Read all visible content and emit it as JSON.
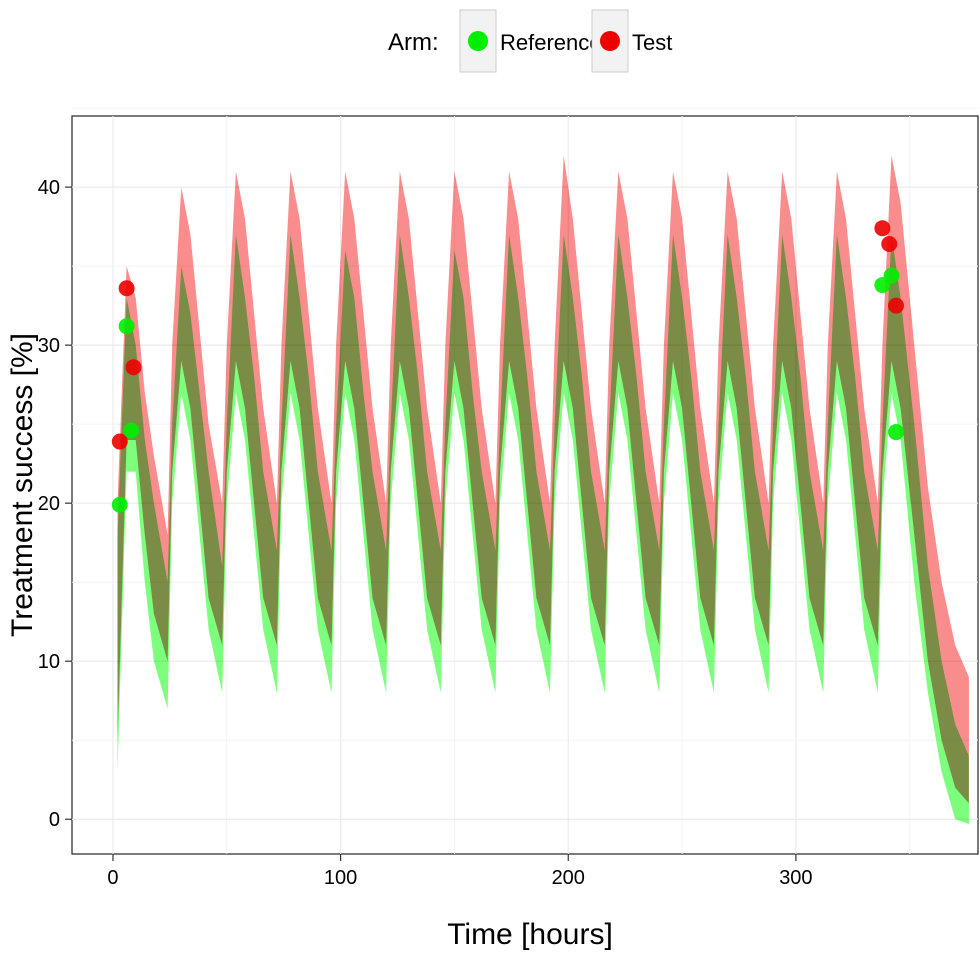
{
  "chart_data": {
    "type": "area",
    "xlabel": "Time [hours]",
    "ylabel": "Treatment success [%]",
    "xlim": [
      -18,
      380
    ],
    "ylim": [
      -2.2,
      44.5
    ],
    "x_ticks": [
      0,
      100,
      200,
      300
    ],
    "y_ticks": [
      0,
      10,
      20,
      30,
      40
    ],
    "grid": true,
    "legend": {
      "title": "Arm:",
      "position": "top",
      "entries": [
        {
          "label": "Reference",
          "color": "#00ee00"
        },
        {
          "label": "Test",
          "color": "#ee0000"
        }
      ]
    },
    "band_description": "90% prediction interval ribbons, dosing every 24 h",
    "series": [
      {
        "name": "Reference",
        "color": "#00ee00",
        "band_color": "#66ff66",
        "dose_interval_h": 24,
        "band_x": [
          2,
          6,
          10,
          14,
          18,
          24,
          26,
          30,
          34,
          38,
          42,
          48,
          50,
          54,
          58,
          62,
          66,
          72,
          74,
          78,
          82,
          86,
          90,
          96,
          98,
          102,
          106,
          110,
          114,
          120,
          122,
          126,
          130,
          134,
          138,
          144,
          146,
          150,
          154,
          158,
          162,
          168,
          170,
          174,
          178,
          182,
          186,
          192,
          194,
          198,
          202,
          206,
          210,
          216,
          218,
          222,
          226,
          230,
          234,
          240,
          242,
          246,
          250,
          254,
          258,
          264,
          266,
          270,
          274,
          278,
          282,
          288,
          290,
          294,
          298,
          302,
          306,
          312,
          314,
          318,
          322,
          326,
          330,
          336,
          338,
          342,
          346,
          352,
          358,
          364,
          370,
          376
        ],
        "band_upper": [
          18,
          33,
          30,
          24,
          20,
          15,
          25,
          35,
          32,
          27,
          22,
          16,
          25,
          37,
          33,
          28,
          22,
          17,
          25,
          37,
          33,
          28,
          22,
          17,
          25,
          36,
          33,
          27,
          22,
          17,
          25,
          37,
          33,
          28,
          22,
          17,
          25,
          36,
          33,
          27,
          22,
          17,
          25,
          37,
          33,
          28,
          22,
          17,
          25,
          37,
          33,
          28,
          22,
          17,
          25,
          37,
          33,
          28,
          22,
          17,
          25,
          37,
          33,
          28,
          22,
          17,
          25,
          37,
          33,
          28,
          22,
          17,
          25,
          37,
          33,
          28,
          22,
          17,
          25,
          37,
          33,
          28,
          22,
          17,
          25,
          37,
          33,
          25,
          16,
          10,
          6,
          4
        ],
        "band_lower": [
          3,
          22,
          22,
          15,
          10,
          7,
          20,
          27,
          24,
          18,
          12,
          8,
          20,
          27,
          24,
          18,
          12,
          8,
          20,
          27,
          24,
          18,
          12,
          8,
          20,
          27,
          24,
          18,
          12,
          8,
          20,
          27,
          24,
          18,
          12,
          8,
          20,
          27,
          24,
          18,
          12,
          8,
          20,
          27,
          24,
          18,
          12,
          8,
          20,
          27,
          24,
          18,
          12,
          8,
          20,
          27,
          24,
          18,
          12,
          8,
          20,
          27,
          24,
          18,
          12,
          8,
          20,
          27,
          24,
          18,
          12,
          8,
          20,
          27,
          24,
          18,
          12,
          8,
          20,
          27,
          24,
          18,
          12,
          8,
          20,
          27,
          24,
          15,
          8,
          3,
          0,
          -0.3
        ],
        "observed_x": [
          3,
          6,
          8,
          338,
          342,
          344
        ],
        "observed_y": [
          19.9,
          31.2,
          24.6,
          33.8,
          34.4,
          24.5
        ]
      },
      {
        "name": "Test",
        "color": "#ee0000",
        "band_color": "#f87878",
        "dose_interval_h": 24,
        "band_x": [
          2,
          6,
          10,
          14,
          18,
          24,
          26,
          30,
          34,
          38,
          42,
          48,
          50,
          54,
          58,
          62,
          66,
          72,
          74,
          78,
          82,
          86,
          90,
          96,
          98,
          102,
          106,
          110,
          114,
          120,
          122,
          126,
          130,
          134,
          138,
          144,
          146,
          150,
          154,
          158,
          162,
          168,
          170,
          174,
          178,
          182,
          186,
          192,
          194,
          198,
          202,
          206,
          210,
          216,
          218,
          222,
          226,
          230,
          234,
          240,
          242,
          246,
          250,
          254,
          258,
          264,
          266,
          270,
          274,
          278,
          282,
          288,
          290,
          294,
          298,
          302,
          306,
          312,
          314,
          318,
          322,
          326,
          330,
          336,
          338,
          342,
          346,
          352,
          358,
          364,
          370,
          376
        ],
        "band_upper": [
          20,
          35,
          33,
          27,
          23,
          18,
          30,
          40,
          37,
          31,
          25,
          20,
          30,
          41,
          38,
          32,
          26,
          20,
          30,
          41,
          38,
          32,
          26,
          20,
          30,
          41,
          38,
          32,
          26,
          20,
          30,
          41,
          38,
          32,
          26,
          20,
          30,
          41,
          38,
          32,
          26,
          20,
          30,
          41,
          38,
          32,
          26,
          20,
          30,
          42,
          38,
          32,
          26,
          20,
          30,
          41,
          38,
          32,
          26,
          20,
          30,
          41,
          38,
          32,
          26,
          20,
          30,
          41,
          38,
          32,
          26,
          20,
          30,
          41,
          38,
          32,
          26,
          20,
          30,
          41,
          38,
          32,
          26,
          20,
          30,
          42,
          39,
          30,
          21,
          15,
          11,
          9
        ],
        "band_lower": [
          5,
          24,
          24,
          18,
          13,
          10,
          22,
          29,
          26,
          20,
          14,
          11,
          22,
          29,
          26,
          20,
          14,
          11,
          22,
          29,
          26,
          20,
          14,
          11,
          22,
          29,
          26,
          20,
          14,
          11,
          22,
          29,
          26,
          20,
          14,
          11,
          22,
          29,
          26,
          20,
          14,
          11,
          22,
          29,
          26,
          20,
          14,
          11,
          22,
          29,
          26,
          20,
          14,
          11,
          22,
          29,
          26,
          20,
          14,
          11,
          22,
          29,
          26,
          20,
          14,
          11,
          22,
          29,
          26,
          20,
          14,
          11,
          22,
          29,
          26,
          20,
          14,
          11,
          22,
          29,
          26,
          20,
          14,
          11,
          22,
          29,
          26,
          18,
          10,
          5,
          2,
          1
        ],
        "observed_x": [
          3,
          6,
          9,
          338,
          341,
          344
        ],
        "observed_y": [
          23.9,
          33.6,
          28.6,
          37.4,
          36.4,
          32.5
        ]
      }
    ]
  }
}
